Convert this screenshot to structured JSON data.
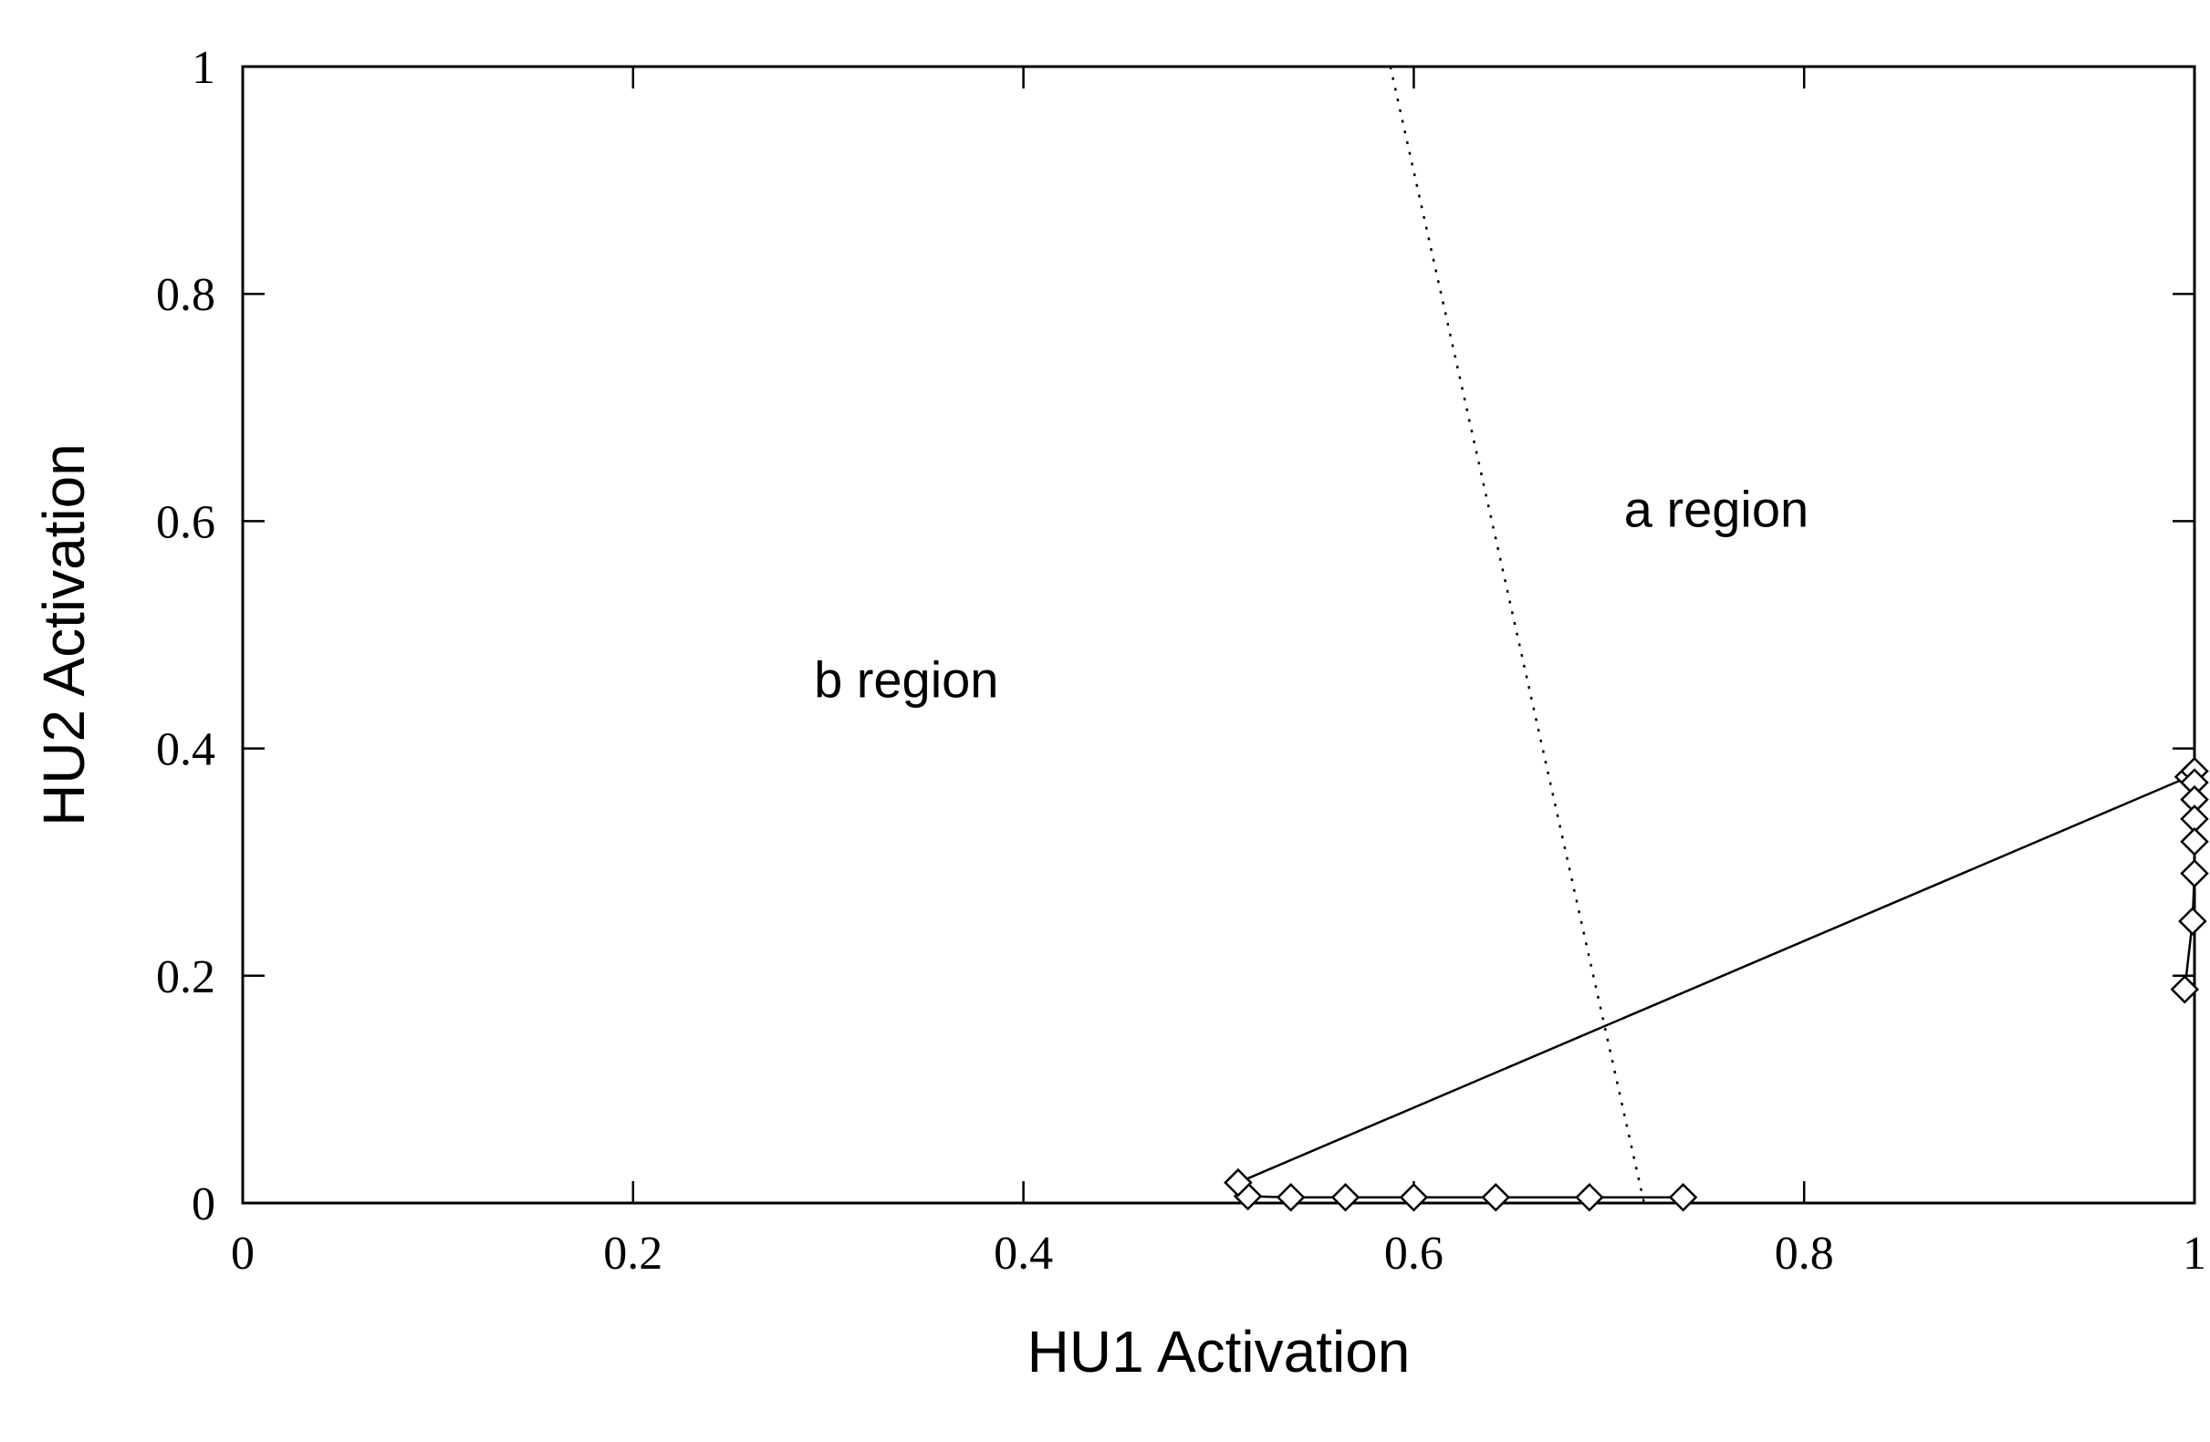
{
  "chart_data": {
    "type": "line",
    "title": "",
    "xlabel": "HU1 Activation",
    "ylabel": "HU2 Activation",
    "xlim": [
      0,
      1
    ],
    "ylim": [
      0,
      1
    ],
    "xticks": [
      "0",
      "0.2",
      "0.4",
      "0.6",
      "0.8",
      "1"
    ],
    "yticks": [
      "0",
      "0.2",
      "0.4",
      "0.6",
      "0.8",
      "1"
    ],
    "grid": false,
    "legend": "none",
    "series": [
      {
        "style": "solid line with diamond markers",
        "points": [
          [
            0.738,
            0.005
          ],
          [
            0.69,
            0.005
          ],
          [
            0.642,
            0.005
          ],
          [
            0.6,
            0.005
          ],
          [
            0.565,
            0.005
          ],
          [
            0.537,
            0.005
          ],
          [
            0.515,
            0.006
          ],
          [
            0.51,
            0.018
          ],
          [
            0.997,
            0.375
          ],
          [
            1.0,
            0.38
          ],
          [
            1.0,
            0.37
          ],
          [
            1.0,
            0.355
          ],
          [
            1.0,
            0.338
          ],
          [
            1.0,
            0.318
          ],
          [
            1.0,
            0.29
          ],
          [
            0.999,
            0.248
          ],
          [
            0.995,
            0.188
          ]
        ]
      },
      {
        "style": "dotted boundary line",
        "points": [
          [
            0.588,
            1.0
          ],
          [
            0.718,
            0.0
          ]
        ]
      }
    ],
    "annotations": [
      {
        "text": "a region",
        "x": 0.755,
        "y": 0.595
      },
      {
        "text": "b region",
        "x": 0.34,
        "y": 0.445
      }
    ]
  }
}
